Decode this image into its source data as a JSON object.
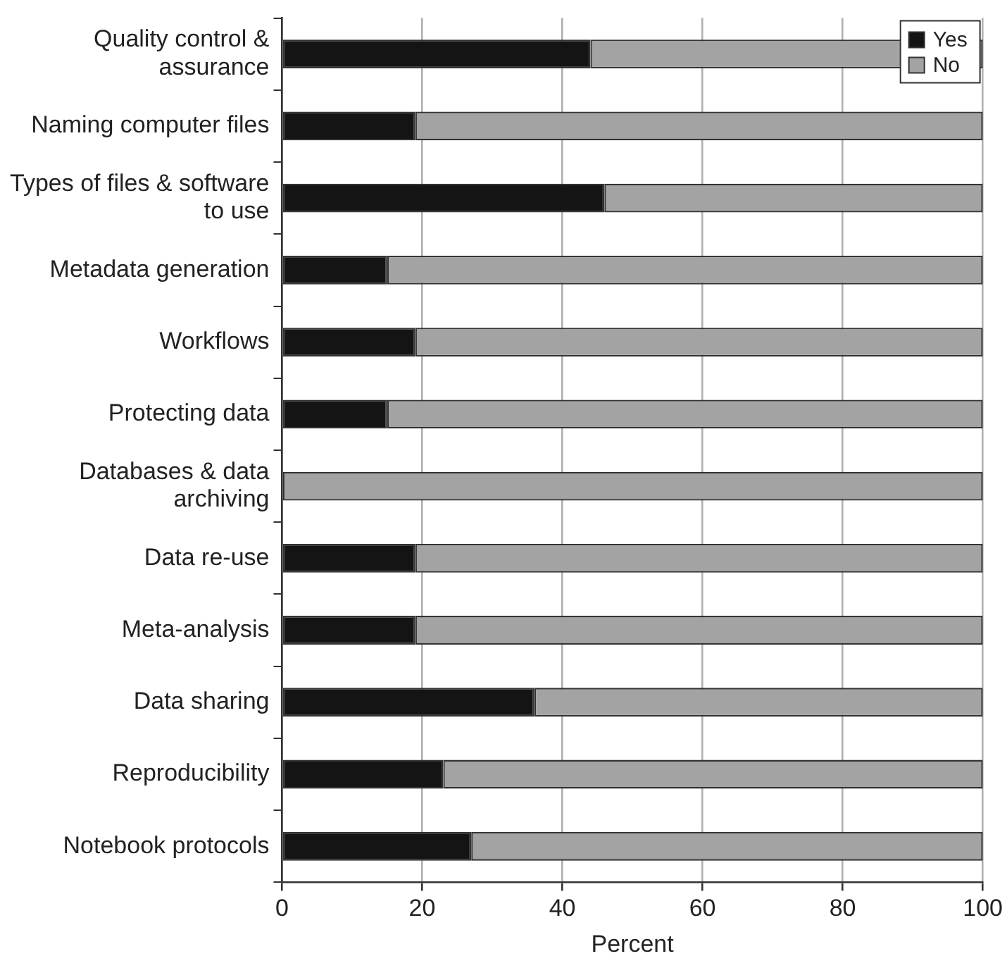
{
  "chart_data": {
    "type": "bar",
    "orientation": "horizontal",
    "stacked": true,
    "xlabel": "Percent",
    "categories": [
      "Quality control & assurance",
      "Naming computer files",
      "Types of files & software to use",
      "Metadata generation",
      "Workflows",
      "Protecting data",
      "Databases & data archiving",
      "Data re-use",
      "Meta-analysis",
      "Data sharing",
      "Reproducibility",
      "Notebook protocols"
    ],
    "series": [
      {
        "name": "Yes",
        "color": "#141414",
        "values": [
          44,
          19,
          46,
          15,
          19,
          15,
          0,
          19,
          19,
          36,
          23,
          27
        ]
      },
      {
        "name": "No",
        "color": "#a3a3a3",
        "values": [
          56,
          81,
          54,
          85,
          81,
          85,
          100,
          81,
          81,
          64,
          77,
          73
        ]
      }
    ],
    "xlim": [
      0,
      100
    ],
    "xticks": [
      0,
      20,
      40,
      60,
      80,
      100
    ],
    "grid": "x",
    "legend": "top right"
  }
}
